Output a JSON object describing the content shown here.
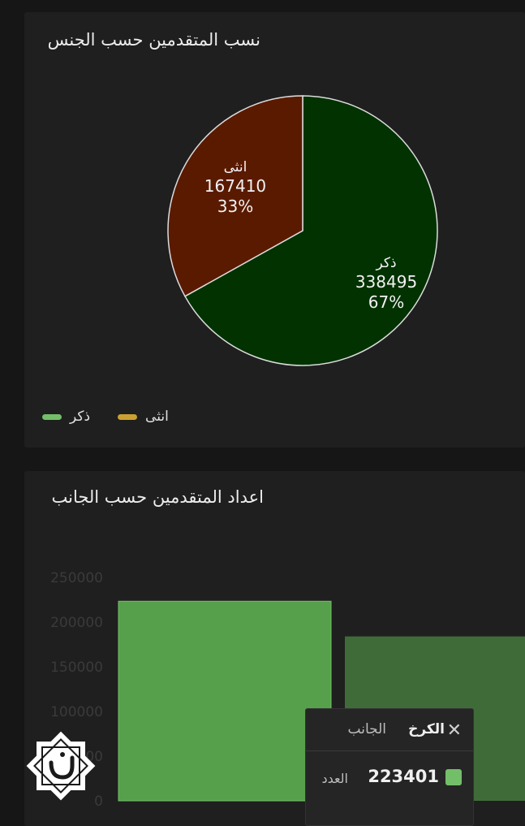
{
  "gender_panel": {
    "title": "نسب المتقدمين حسب الجنس",
    "legend": [
      {
        "label": "ذكر",
        "color": "#73bf69"
      },
      {
        "label": "انثى",
        "color": "#caa032"
      }
    ]
  },
  "side_panel": {
    "title": "اعداد المتقدمين حسب الجانب",
    "tooltip": {
      "key_label": "الجانب",
      "key_value": "الكرخ",
      "count_label": "العدد",
      "count_value": "223401",
      "close_icon": "close-icon"
    }
  },
  "logo": {
    "name": "watermark-logo"
  },
  "chart_data": [
    {
      "type": "pie",
      "title": "نسب المتقدمين حسب الجنس",
      "slices": [
        {
          "label": "ذكر",
          "value": 338495,
          "percent": "67%",
          "color": "#013200"
        },
        {
          "label": "انثى",
          "value": 167410,
          "percent": "33%",
          "color": "#5a1a00"
        }
      ]
    },
    {
      "type": "bar",
      "title": "اعداد المتقدمين حسب الجانب",
      "categories": [
        "الكرخ",
        ""
      ],
      "values": [
        223401,
        184000
      ],
      "colors": [
        "#56a04b",
        "#3f6b38"
      ],
      "y_ticks": [
        "250000",
        "200000",
        "150000",
        "100000",
        "50000",
        "0"
      ],
      "ylim": [
        0,
        250000
      ]
    }
  ]
}
